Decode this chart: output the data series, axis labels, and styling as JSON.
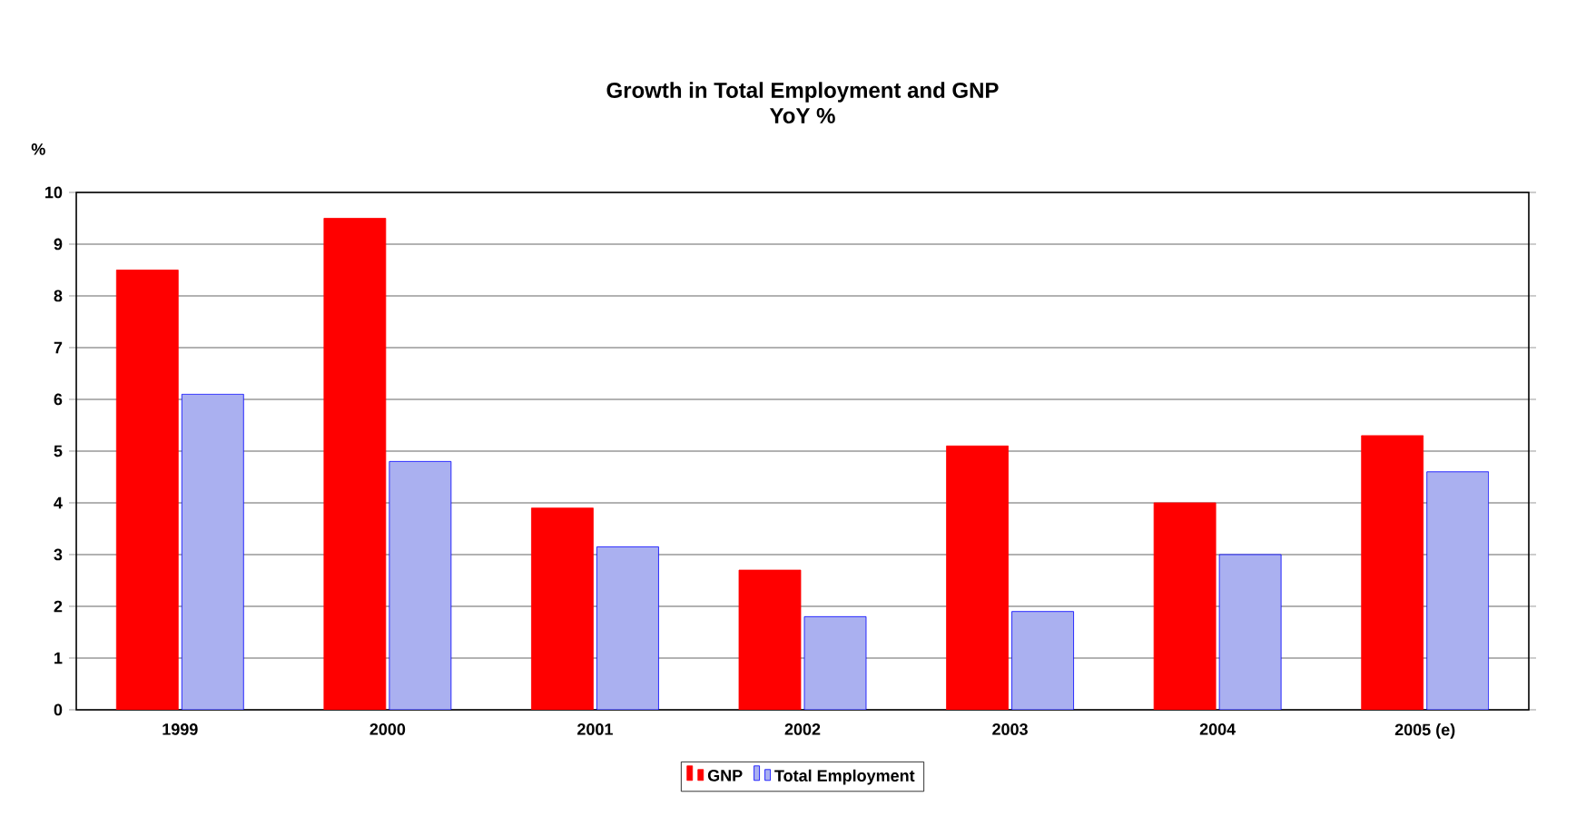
{
  "chart_data": {
    "type": "bar",
    "title": "Growth in Total Employment and GNP\nYoY %",
    "ylabel": "%",
    "categories": [
      "1999",
      "2000",
      "2001",
      "2002",
      "2003",
      "2004",
      "2005 (e)"
    ],
    "series": [
      {
        "name": "GNP",
        "color": "#ff0000",
        "values": [
          8.5,
          9.5,
          3.9,
          2.7,
          5.1,
          4.0,
          5.3
        ]
      },
      {
        "name": "Total Employment",
        "color": "#aab0f0",
        "values": [
          6.1,
          4.8,
          3.15,
          1.8,
          1.9,
          3.0,
          4.6
        ]
      }
    ],
    "ylim": [
      0,
      10
    ],
    "yticks": [
      0,
      1,
      2,
      3,
      4,
      5,
      6,
      7,
      8,
      9,
      10
    ],
    "grid": "y",
    "legend": "bottom"
  }
}
